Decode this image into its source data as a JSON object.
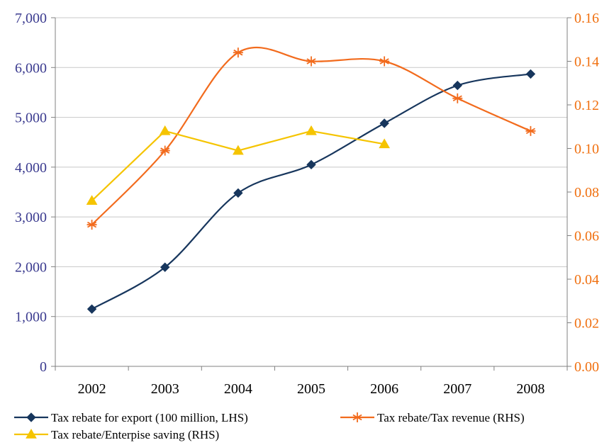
{
  "chart_data": {
    "type": "line",
    "categories": [
      "2002",
      "2003",
      "2004",
      "2005",
      "2006",
      "2007",
      "2008"
    ],
    "y_left": {
      "ylim": [
        0,
        7000
      ],
      "ticks": [
        "0",
        "1,000",
        "2,000",
        "3,000",
        "4,000",
        "5,000",
        "6,000",
        "7,000"
      ]
    },
    "y_right": {
      "ylim": [
        0,
        0.16
      ],
      "ticks": [
        "0.00",
        "0.02",
        "0.04",
        "0.06",
        "0.08",
        "0.10",
        "0.12",
        "0.14",
        "0.16"
      ]
    },
    "grid": true,
    "legend_position": "bottom",
    "series": [
      {
        "name": "Tax rebate for export (100 million, LHS)",
        "axis": "left",
        "color": "#17365d",
        "marker": "diamond",
        "values": [
          1150,
          1990,
          3480,
          4050,
          4880,
          5640,
          5870
        ]
      },
      {
        "name": "Tax rebate/Tax revenue (RHS)",
        "axis": "right",
        "color": "#f26b1d",
        "marker": "asterisk",
        "values": [
          0.065,
          0.099,
          0.144,
          0.14,
          0.14,
          0.123,
          0.108
        ]
      },
      {
        "name": "Tax rebate/Enterpise saving (RHS)",
        "axis": "right",
        "color": "#f5c400",
        "marker": "triangle",
        "values": [
          0.076,
          0.108,
          0.099,
          0.108,
          0.102,
          null,
          null
        ]
      }
    ]
  }
}
